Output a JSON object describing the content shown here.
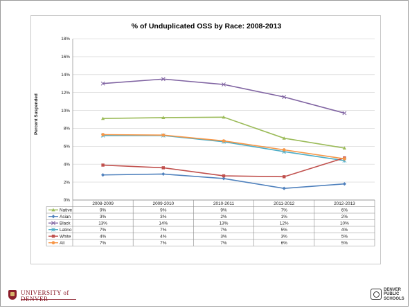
{
  "chart_data": {
    "type": "line",
    "title": "% of Unduplicated OSS by Race: 2008-2013",
    "ylabel": "Percent Suspended",
    "xlabel": "",
    "ylim": [
      0,
      18
    ],
    "yticks": [
      "0%",
      "2%",
      "4%",
      "6%",
      "8%",
      "10%",
      "12%",
      "14%",
      "16%",
      "18%"
    ],
    "categories": [
      "2008-2009",
      "2009-2010",
      "2010-2011",
      "2011-2012",
      "2012-2013"
    ],
    "grid": true,
    "legend": "data-table",
    "series": [
      {
        "name": "Native",
        "color": "#9bbb59",
        "marker": "triangle",
        "values": [
          9.1,
          9.2,
          9.25,
          6.9,
          5.8
        ],
        "labels": [
          "9%",
          "9%",
          "9%",
          "7%",
          "6%"
        ]
      },
      {
        "name": "Asian",
        "color": "#4f81bd",
        "marker": "diamond",
        "values": [
          2.8,
          2.9,
          2.4,
          1.3,
          1.8
        ],
        "labels": [
          "3%",
          "3%",
          "2%",
          "1%",
          "2%"
        ]
      },
      {
        "name": "Black",
        "color": "#8064a2",
        "marker": "x",
        "values": [
          13.0,
          13.5,
          12.9,
          11.5,
          9.7
        ],
        "labels": [
          "13%",
          "14%",
          "13%",
          "12%",
          "10%"
        ]
      },
      {
        "name": "Latino",
        "color": "#4bacc6",
        "marker": "star",
        "values": [
          7.2,
          7.2,
          6.5,
          5.4,
          4.4
        ],
        "labels": [
          "7%",
          "7%",
          "7%",
          "5%",
          "4%"
        ]
      },
      {
        "name": "White",
        "color": "#c0504d",
        "marker": "square",
        "values": [
          3.9,
          3.6,
          2.7,
          2.6,
          4.7
        ],
        "labels": [
          "4%",
          "4%",
          "3%",
          "3%",
          "5%"
        ]
      },
      {
        "name": "All",
        "color": "#f79646",
        "marker": "circle",
        "values": [
          7.3,
          7.25,
          6.6,
          5.6,
          4.6
        ],
        "labels": [
          "7%",
          "7%",
          "7%",
          "6%",
          "5%"
        ]
      }
    ]
  },
  "footer": {
    "du_logo": "UNIVERSITY of\nDENVER",
    "dps_logo": "DENVER\nPUBLIC\nSCHOOLS"
  }
}
